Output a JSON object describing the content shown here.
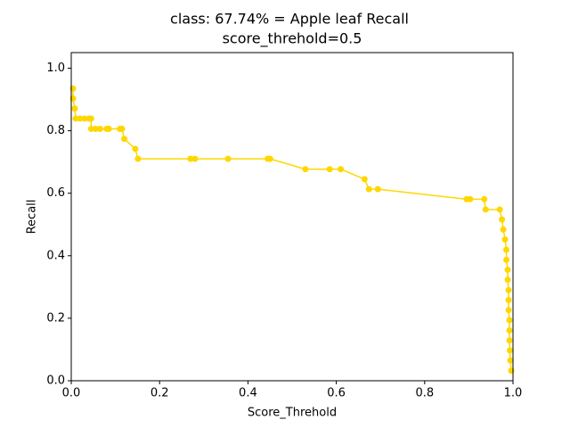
{
  "chart_data": {
    "type": "line",
    "title": "class: 67.74% = Apple leaf Recall",
    "subtitle": "score_threhold=0.5",
    "x_label": "Score_Threhold",
    "y_label": "Recall",
    "xlim": [
      0,
      1
    ],
    "ylim": [
      0,
      1.05
    ],
    "xticks": [
      {
        "value": 0,
        "label": "0.0"
      },
      {
        "value": 0.2,
        "label": "0.2"
      },
      {
        "value": 0.4,
        "label": "0.4"
      },
      {
        "value": 0.6,
        "label": "0.6"
      },
      {
        "value": 0.8,
        "label": "0.8"
      },
      {
        "value": 1,
        "label": "1.0"
      }
    ],
    "yticks": [
      {
        "value": 0,
        "label": "0.0"
      },
      {
        "value": 0.2,
        "label": "0.2"
      },
      {
        "value": 0.4,
        "label": "0.4"
      },
      {
        "value": 0.6,
        "label": "0.6"
      },
      {
        "value": 0.8,
        "label": "0.8"
      },
      {
        "value": 1,
        "label": "1.0"
      }
    ],
    "color": "#ffd700",
    "x": [
      0.004,
      0.004,
      0.008,
      0.01,
      0.02,
      0.03,
      0.04,
      0.045,
      0.045,
      0.055,
      0.065,
      0.08,
      0.085,
      0.11,
      0.115,
      0.12,
      0.145,
      0.151,
      0.27,
      0.28,
      0.355,
      0.445,
      0.45,
      0.53,
      0.585,
      0.61,
      0.664,
      0.674,
      0.694,
      0.895,
      0.903,
      0.935,
      0.938,
      0.97,
      0.975,
      0.978,
      0.982,
      0.985,
      0.985,
      0.988,
      0.988,
      0.99,
      0.99,
      0.99,
      0.992,
      0.992,
      0.992,
      0.993,
      0.994,
      0.996
    ],
    "values": [
      0.935,
      0.903,
      0.871,
      0.839,
      0.839,
      0.839,
      0.839,
      0.839,
      0.806,
      0.806,
      0.806,
      0.806,
      0.806,
      0.806,
      0.806,
      0.774,
      0.742,
      0.71,
      0.71,
      0.71,
      0.71,
      0.71,
      0.71,
      0.677,
      0.677,
      0.677,
      0.645,
      0.613,
      0.613,
      0.581,
      0.581,
      0.581,
      0.548,
      0.548,
      0.516,
      0.484,
      0.452,
      0.419,
      0.387,
      0.355,
      0.323,
      0.29,
      0.258,
      0.226,
      0.194,
      0.161,
      0.129,
      0.097,
      0.065,
      0.032
    ]
  }
}
